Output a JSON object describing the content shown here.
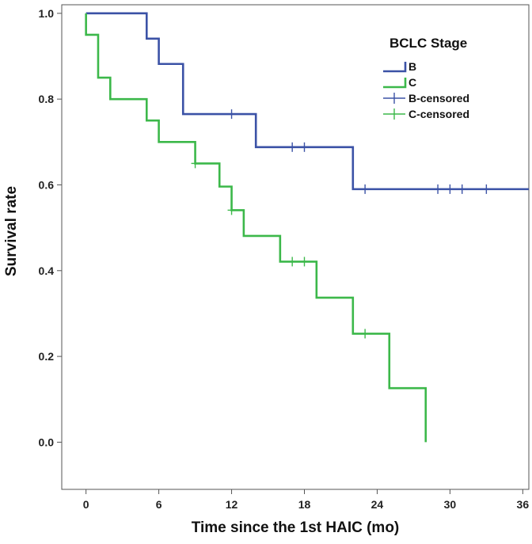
{
  "chart_data": {
    "type": "line",
    "subtype": "kaplan-meier step",
    "title": "",
    "xlabel": "Time since the 1st HAIC (mo)",
    "ylabel": "Survival rate",
    "xlim": [
      -2,
      36.5
    ],
    "ylim": [
      -0.11,
      1.02
    ],
    "xticks": [
      0,
      6,
      12,
      18,
      24,
      30,
      36
    ],
    "yticks": [
      0.0,
      0.2,
      0.4,
      0.6,
      0.8,
      1.0
    ],
    "ytick_labels": [
      "0.0",
      "0.2",
      "0.4",
      "0.6",
      "0.8",
      "1.0"
    ],
    "grid": false,
    "legend": {
      "title": "BCLC Stage",
      "placement": "top-right",
      "entries": [
        "B",
        "C",
        "B-censored",
        "C-censored"
      ]
    },
    "series": [
      {
        "name": "B",
        "color": "#3b52a6",
        "steps": [
          [
            0,
            1.0
          ],
          [
            5,
            0.941
          ],
          [
            6,
            0.882
          ],
          [
            8,
            0.765
          ],
          [
            14,
            0.688
          ],
          [
            22,
            0.59
          ]
        ],
        "end_x": 36.5,
        "censored": [
          [
            12,
            0.765
          ],
          [
            17,
            0.688
          ],
          [
            18,
            0.688
          ],
          [
            23,
            0.59
          ],
          [
            29,
            0.59
          ],
          [
            30,
            0.59
          ],
          [
            31,
            0.59
          ],
          [
            33,
            0.59
          ]
        ]
      },
      {
        "name": "C",
        "color": "#3cb84a",
        "steps": [
          [
            0,
            1.0
          ],
          [
            0,
            0.95
          ],
          [
            1,
            0.85
          ],
          [
            2,
            0.8
          ],
          [
            5,
            0.75
          ],
          [
            6,
            0.7
          ],
          [
            9,
            0.65
          ],
          [
            11,
            0.596
          ],
          [
            12,
            0.541
          ],
          [
            13,
            0.481
          ],
          [
            16,
            0.421
          ],
          [
            19,
            0.337
          ],
          [
            22,
            0.253
          ],
          [
            25,
            0.126
          ],
          [
            28,
            0.0
          ]
        ],
        "end_x": 28,
        "censored": [
          [
            9,
            0.65
          ],
          [
            12,
            0.541
          ],
          [
            17,
            0.421
          ],
          [
            18,
            0.421
          ],
          [
            23,
            0.253
          ]
        ]
      }
    ]
  }
}
